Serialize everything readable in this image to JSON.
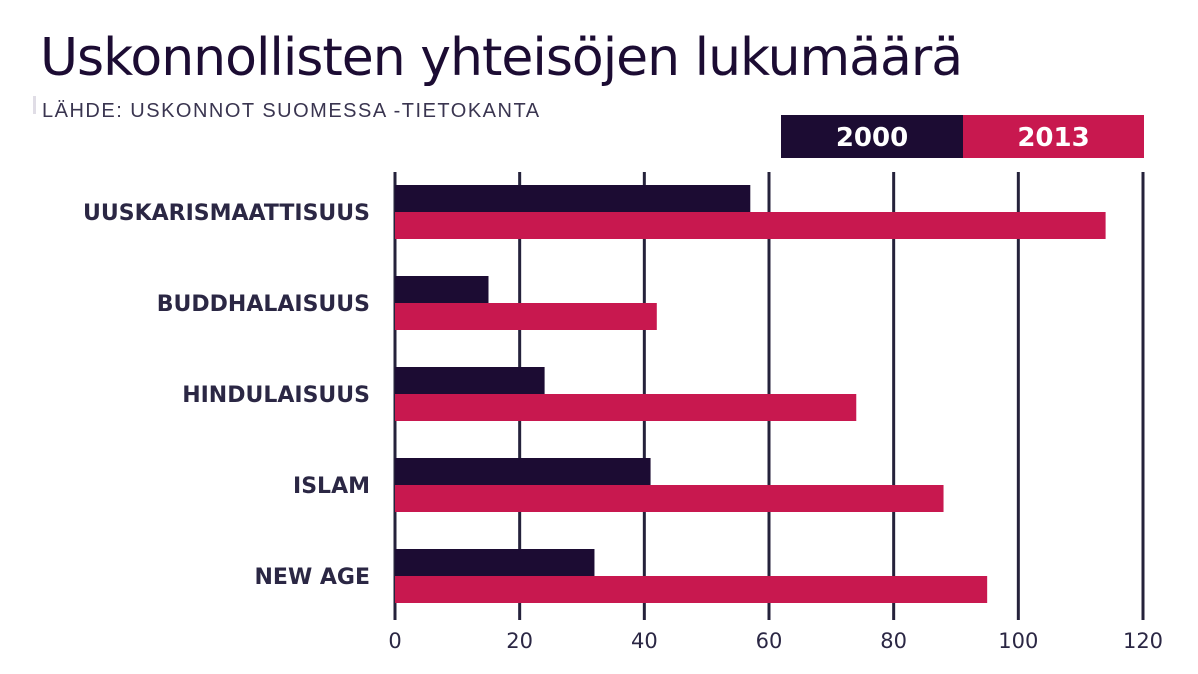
{
  "title": "Uskonnollisten yhteisöjen lukumäärä",
  "source": "LÄHDE: USKONNOT SUOMESSA -TIETOKANTA",
  "colors": {
    "s2000": "#1c0c33",
    "s2013": "#c8184f",
    "grid": "#25223b",
    "text": "#2b2744"
  },
  "chart_data": {
    "type": "bar",
    "orientation": "horizontal",
    "title": "Uskonnollisten yhteisöjen lukumäärä",
    "categories": [
      "UUSKARISMAATTISUUS",
      "BUDDHALAISUUS",
      "HINDULAISUUS",
      "ISLAM",
      "NEW AGE"
    ],
    "series": [
      {
        "name": "2000",
        "values": [
          57,
          15,
          24,
          41,
          32
        ]
      },
      {
        "name": "2013",
        "values": [
          114,
          42,
          74,
          88,
          95
        ]
      }
    ],
    "xlim": [
      0,
      120
    ],
    "xticks": [
      0,
      20,
      40,
      60,
      80,
      100,
      120
    ],
    "xlabel": "",
    "ylabel": "",
    "legend": "top-right",
    "grid": true
  }
}
